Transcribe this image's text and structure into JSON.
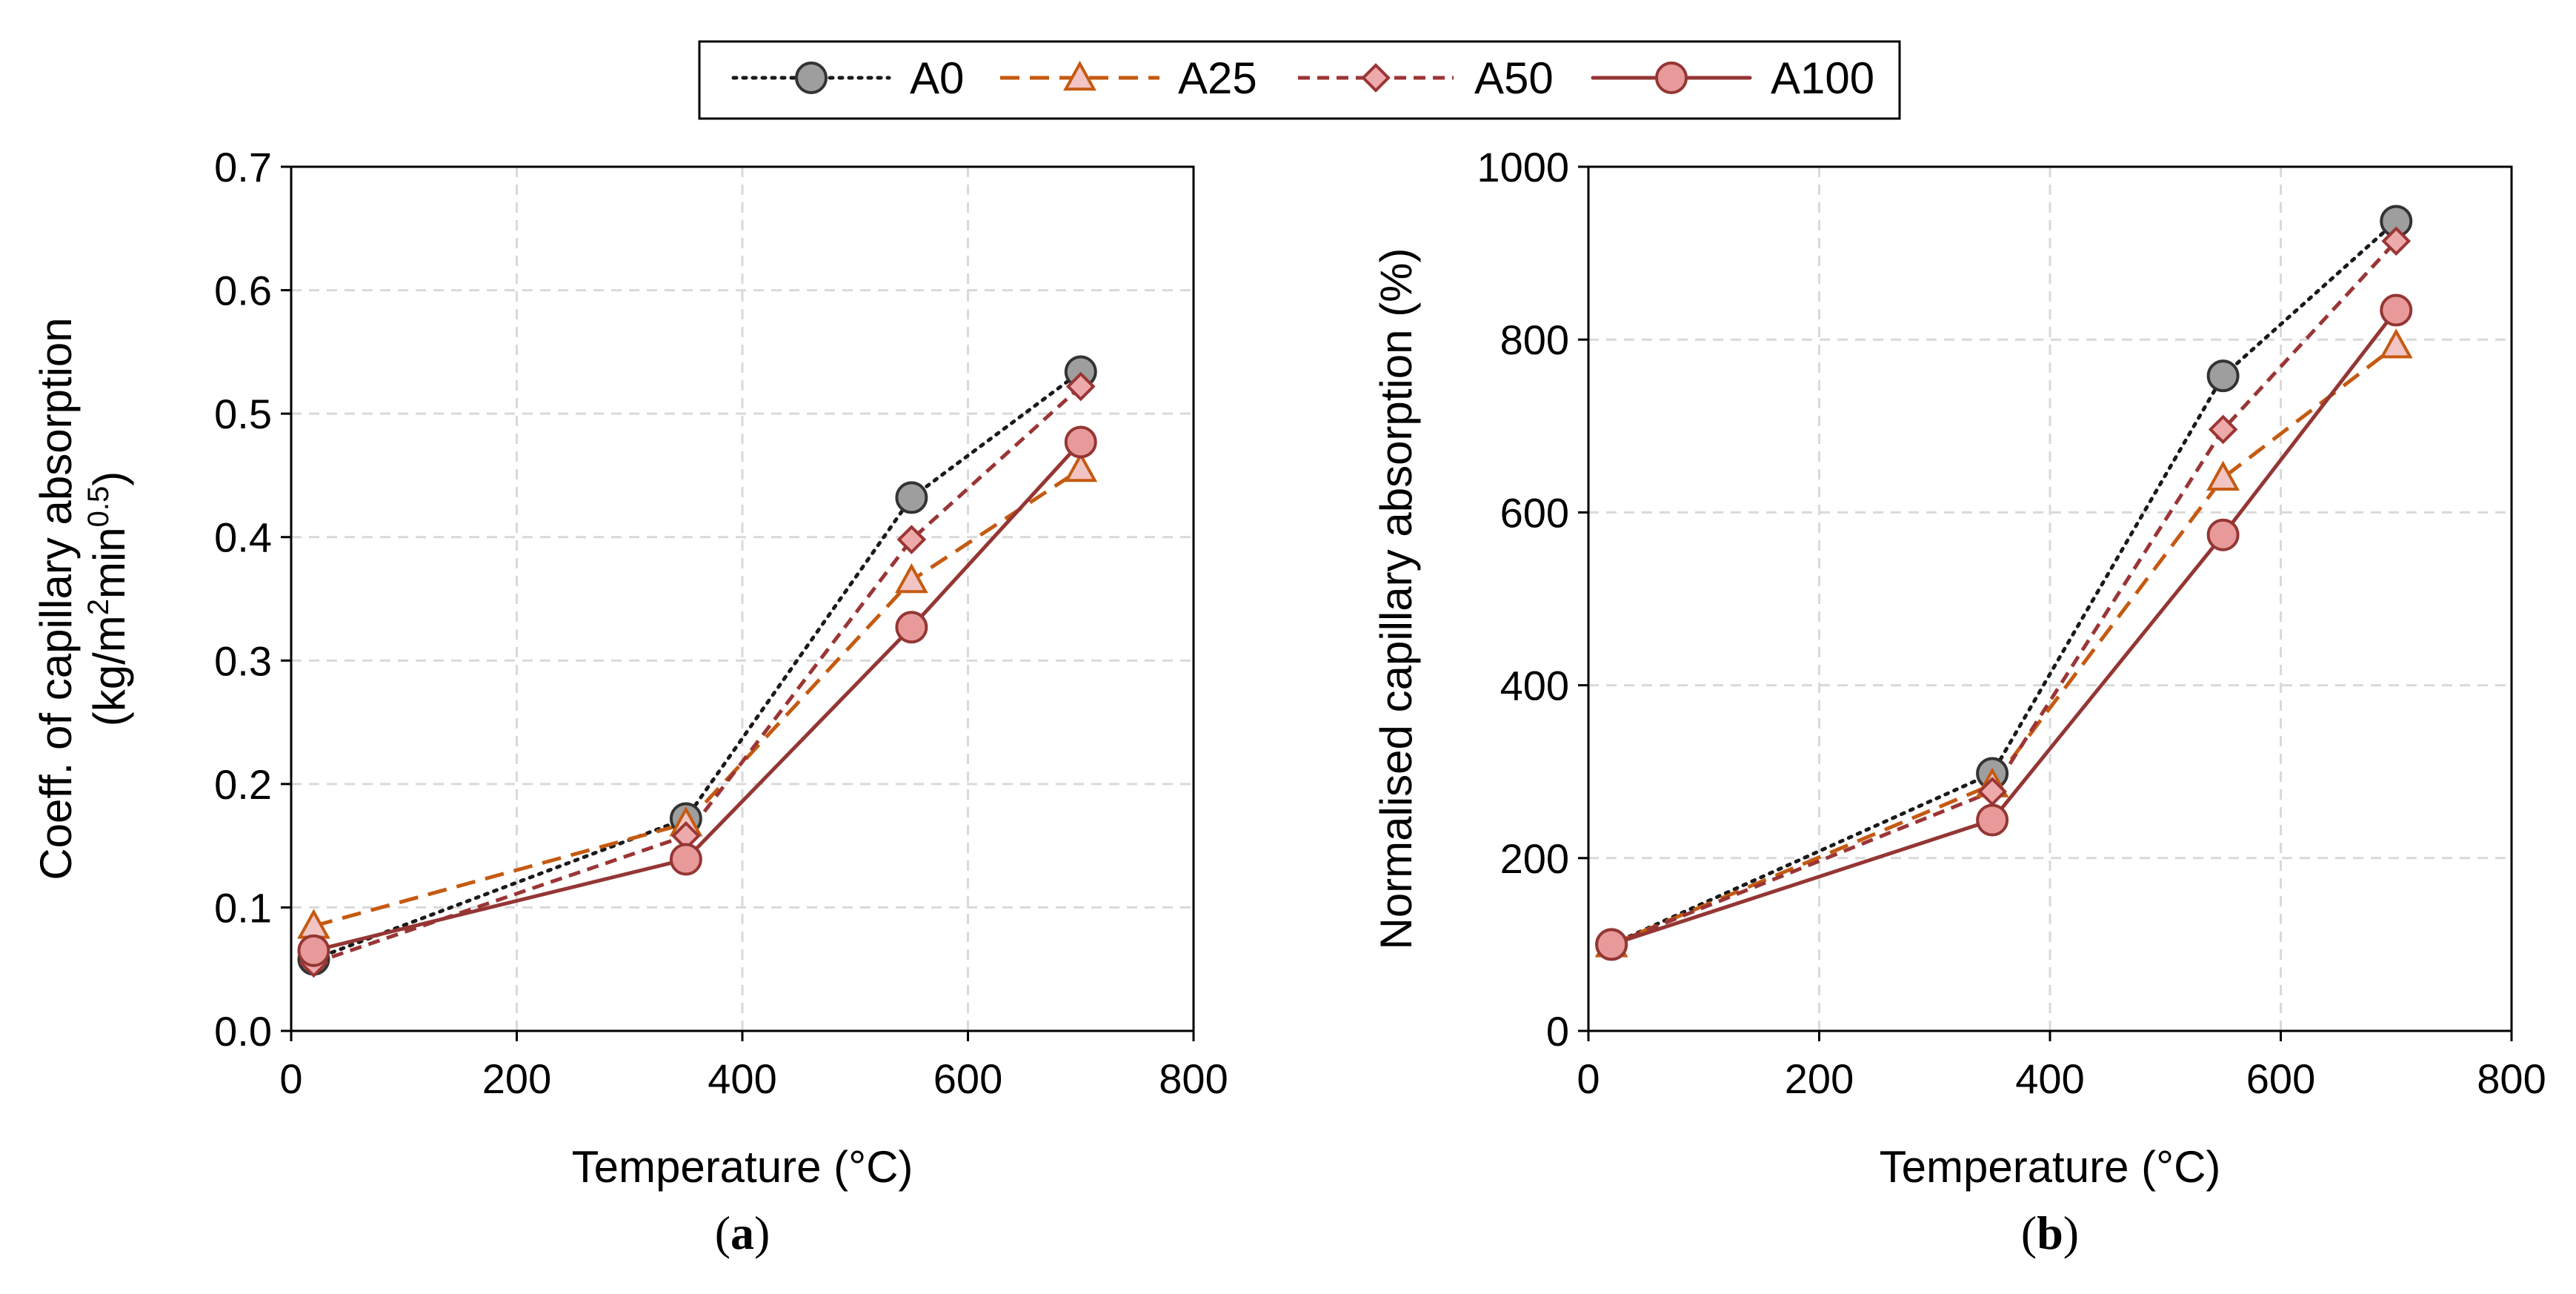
{
  "legend": [
    {
      "name": "A0",
      "color": "#1a1a1a",
      "fill": "#9e9e9e",
      "dash": "dotted",
      "marker": "circle"
    },
    {
      "name": "A25",
      "color": "#c55a11",
      "fill": "#f2c4c4",
      "dash": "longdash",
      "marker": "triangle"
    },
    {
      "name": "A50",
      "color": "#9b3535",
      "fill": "#eeaaaa",
      "dash": "shortdash",
      "marker": "diamond"
    },
    {
      "name": "A100",
      "color": "#943634",
      "fill": "#e89a9a",
      "dash": "solid",
      "marker": "circle"
    }
  ],
  "chart_data": [
    {
      "type": "line",
      "panel": {
        "pre": "(",
        "letter": "a",
        "post": ")"
      },
      "xlabel": "Temperature (°C)",
      "ylabel_line1": "Coeff. of capillary absorption",
      "ylabel_line2": {
        "a": "(kg/m",
        "b": "2",
        "c": "min",
        "d": "0.5",
        "e": ")"
      },
      "xlim": [
        0,
        800
      ],
      "ylim": [
        0,
        0.7
      ],
      "xticks": [
        0,
        200,
        400,
        600,
        800
      ],
      "xtick_labels": [
        "0",
        "200",
        "400",
        "600",
        "800"
      ],
      "yticks": [
        0,
        0.1,
        0.2,
        0.3,
        0.4,
        0.5,
        0.6,
        0.7
      ],
      "ytick_labels": [
        "0.0",
        "0.1",
        "0.2",
        "0.3",
        "0.4",
        "0.5",
        "0.6",
        "0.7"
      ],
      "grid": true,
      "x": [
        20,
        350,
        550,
        700
      ],
      "series": [
        {
          "name": "A0",
          "values": [
            0.058,
            0.172,
            0.432,
            0.534
          ]
        },
        {
          "name": "A25",
          "values": [
            0.085,
            0.168,
            0.365,
            0.455
          ]
        },
        {
          "name": "A50",
          "values": [
            0.055,
            0.158,
            0.398,
            0.522
          ]
        },
        {
          "name": "A100",
          "values": [
            0.065,
            0.139,
            0.327,
            0.477
          ]
        }
      ]
    },
    {
      "type": "line",
      "panel": {
        "pre": "(",
        "letter": "b",
        "post": ")"
      },
      "xlabel": "Temperature (°C)",
      "ylabel_line1": "Normalised capillary absorption (%)",
      "xlim": [
        0,
        800
      ],
      "ylim": [
        0,
        1000
      ],
      "xticks": [
        0,
        200,
        400,
        600,
        800
      ],
      "xtick_labels": [
        "0",
        "200",
        "400",
        "600",
        "800"
      ],
      "yticks": [
        0,
        200,
        400,
        600,
        800,
        1000
      ],
      "ytick_labels": [
        "0",
        "200",
        "400",
        "600",
        "800",
        "1000"
      ],
      "grid": true,
      "x": [
        20,
        350,
        550,
        700
      ],
      "series": [
        {
          "name": "A0",
          "values": [
            100,
            298,
            758,
            937
          ]
        },
        {
          "name": "A25",
          "values": [
            100,
            285,
            640,
            793
          ]
        },
        {
          "name": "A50",
          "values": [
            100,
            277,
            696,
            914
          ]
        },
        {
          "name": "A100",
          "values": [
            100,
            244,
            574,
            834
          ]
        }
      ]
    }
  ]
}
